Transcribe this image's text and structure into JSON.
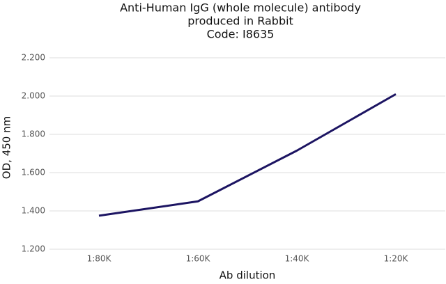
{
  "chart_data": {
    "type": "line",
    "title": [
      "Anti-Human IgG (whole molecule) antibody",
      "produced in Rabbit",
      "Code: I8635"
    ],
    "x_label": "Ab dilution",
    "y_label": "OD, 450 nm",
    "categories": [
      "1:80K",
      "1:60K",
      "1:40K",
      "1:20K"
    ],
    "values": [
      1.375,
      1.45,
      1.715,
      2.01
    ],
    "color": "#1c1462",
    "ylim": [
      1.2,
      2.2
    ],
    "yticks": [
      {
        "value": 1.2,
        "label": "1.200"
      },
      {
        "value": 1.4,
        "label": "1.400"
      },
      {
        "value": 1.6,
        "label": "1.600"
      },
      {
        "value": 1.8,
        "label": "1.800"
      },
      {
        "value": 2.0,
        "label": "2.000"
      },
      {
        "value": 2.2,
        "label": "2.200"
      }
    ],
    "grid": true
  }
}
